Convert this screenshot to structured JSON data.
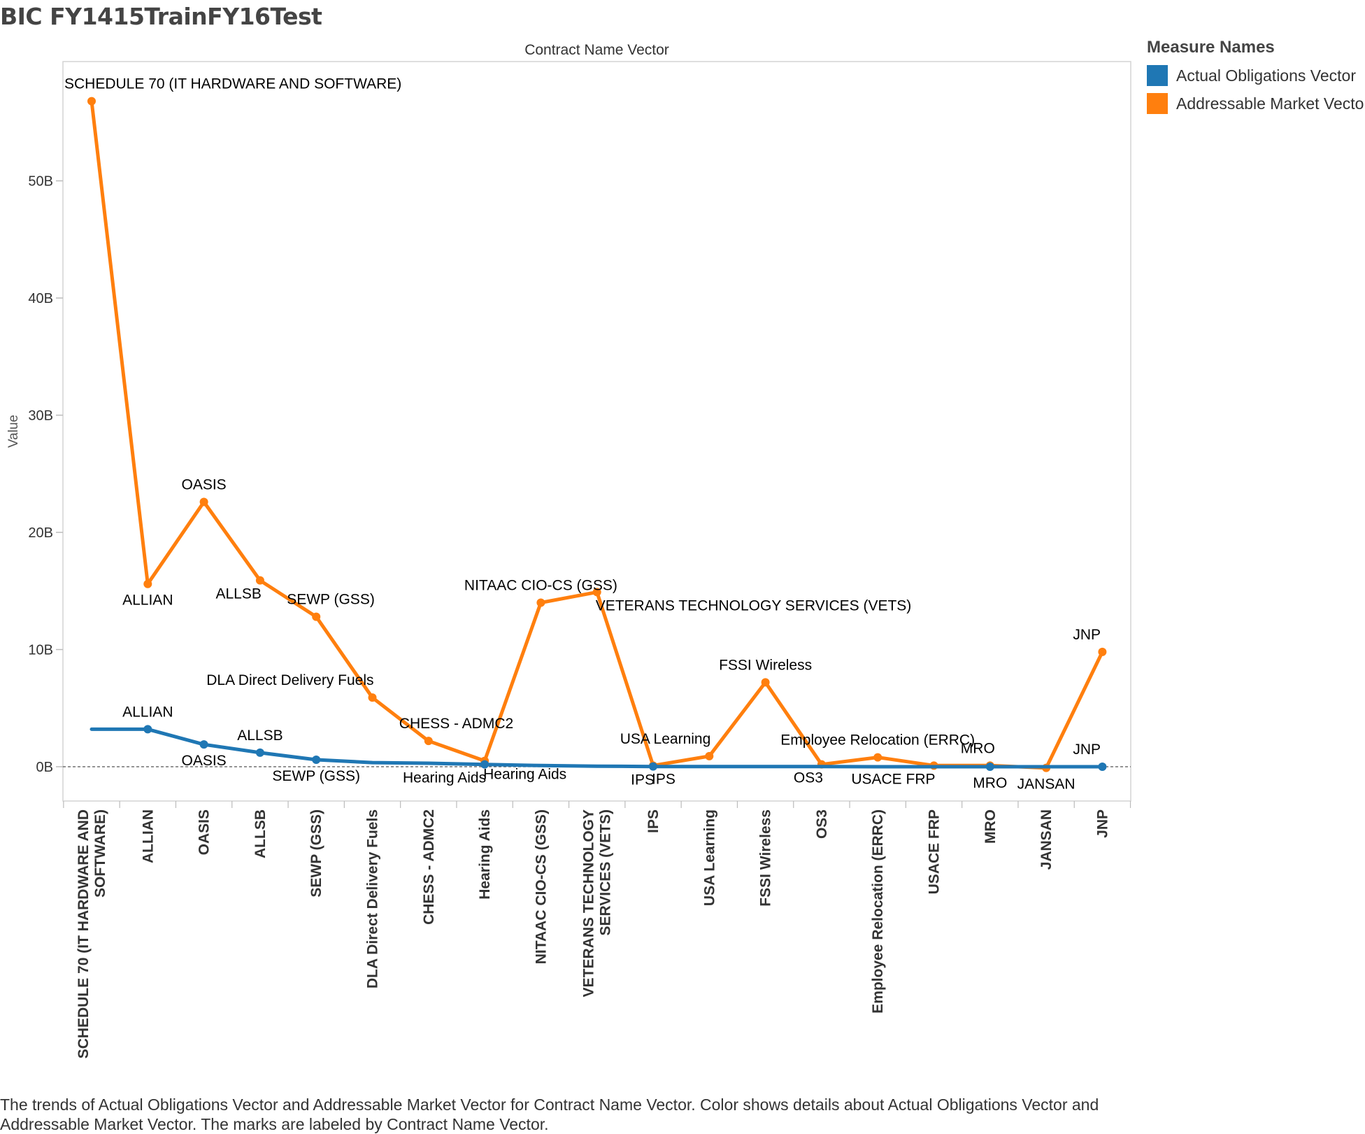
{
  "title": "BIC FY1415TrainFY16Test",
  "chart_data": {
    "type": "line",
    "x_axis_title": "Contract Name Vector",
    "y_axis_title": "Value",
    "y_ticks": [
      {
        "value": 0,
        "label": "0B"
      },
      {
        "value": 10,
        "label": "10B"
      },
      {
        "value": 20,
        "label": "20B"
      },
      {
        "value": 30,
        "label": "30B"
      },
      {
        "value": 40,
        "label": "40B"
      },
      {
        "value": 50,
        "label": "50B"
      }
    ],
    "y_unit": "billions",
    "ylim": [
      -3,
      61
    ],
    "categories": [
      {
        "lines": [
          "SCHEDULE 70 (IT HARDWARE AND",
          "SOFTWARE)"
        ]
      },
      {
        "lines": [
          "ALLIAN"
        ]
      },
      {
        "lines": [
          "OASIS"
        ]
      },
      {
        "lines": [
          "ALLSB"
        ]
      },
      {
        "lines": [
          "SEWP (GSS)"
        ]
      },
      {
        "lines": [
          "DLA Direct Delivery Fuels"
        ]
      },
      {
        "lines": [
          "CHESS - ADMC2"
        ]
      },
      {
        "lines": [
          "Hearing Aids"
        ]
      },
      {
        "lines": [
          "NITAAC CIO-CS (GSS)"
        ]
      },
      {
        "lines": [
          "VETERANS TECHNOLOGY",
          "SERVICES (VETS)"
        ]
      },
      {
        "lines": [
          "IPS"
        ]
      },
      {
        "lines": [
          "USA Learning"
        ]
      },
      {
        "lines": [
          "FSSI Wireless"
        ]
      },
      {
        "lines": [
          "OS3"
        ]
      },
      {
        "lines": [
          "Employee Relocation (ERRC)"
        ]
      },
      {
        "lines": [
          "USACE FRP"
        ]
      },
      {
        "lines": [
          "MRO"
        ]
      },
      {
        "lines": [
          "JANSAN"
        ]
      },
      {
        "lines": [
          "JNP"
        ]
      }
    ],
    "series": [
      {
        "name": "Actual Obligations Vector",
        "color": "#1F77B4",
        "values": [
          3.2,
          3.2,
          1.9,
          1.2,
          0.6,
          0.35,
          0.3,
          0.2,
          0.1,
          0.05,
          0.02,
          0.02,
          0.01,
          0.01,
          0.0,
          0.0,
          0.0,
          0.0,
          0.0
        ],
        "marker_indices": [
          1,
          2,
          3,
          4,
          7,
          10,
          16,
          18
        ],
        "labels": [
          {
            "i": 1,
            "text": "ALLIAN",
            "pos": "above"
          },
          {
            "i": 2,
            "text": "OASIS",
            "pos": "below"
          },
          {
            "i": 3,
            "text": "ALLSB",
            "pos": "above"
          },
          {
            "i": 4,
            "text": "SEWP (GSS)",
            "pos": "below"
          },
          {
            "i": 7,
            "text": "Hearing Aids",
            "pos": "below-left"
          },
          {
            "i": 10,
            "text": "IPS",
            "pos": "below-left"
          },
          {
            "i": 16,
            "text": "MRO",
            "pos": "below"
          },
          {
            "i": 18,
            "text": "JNP",
            "pos": "above-right"
          }
        ]
      },
      {
        "name": "Addressable Market Vector",
        "color": "#FF7F0E",
        "values": [
          56.8,
          15.6,
          22.6,
          15.9,
          12.8,
          5.9,
          2.2,
          0.5,
          14.0,
          14.9,
          0.1,
          0.9,
          7.2,
          0.2,
          0.8,
          0.1,
          0.1,
          -0.1,
          9.8
        ],
        "labels": [
          {
            "i": 0,
            "text": "SCHEDULE 70 (IT HARDWARE AND SOFTWARE)",
            "pos": "above-right"
          },
          {
            "i": 1,
            "text": "ALLIAN",
            "pos": "below"
          },
          {
            "i": 2,
            "text": "OASIS",
            "pos": "above"
          },
          {
            "i": 3,
            "text": "ALLSB",
            "pos": "below-left"
          },
          {
            "i": 4,
            "text": "SEWP (GSS)",
            "pos": "above-right"
          },
          {
            "i": 5,
            "text": "DLA Direct Delivery Fuels",
            "pos": "above-left"
          },
          {
            "i": 6,
            "text": "CHESS - ADMC2",
            "pos": "above-right"
          },
          {
            "i": 7,
            "text": "Hearing Aids",
            "pos": "below-right"
          },
          {
            "i": 8,
            "text": "NITAAC CIO-CS (GSS)",
            "pos": "above"
          },
          {
            "i": 9,
            "text": "VETERANS TECHNOLOGY SERVICES (VETS)",
            "pos": "below-right"
          },
          {
            "i": 10,
            "text": "IPS",
            "pos": "below-right"
          },
          {
            "i": 11,
            "text": "USA Learning",
            "pos": "above-left"
          },
          {
            "i": 12,
            "text": "FSSI Wireless",
            "pos": "above"
          },
          {
            "i": 13,
            "text": "OS3",
            "pos": "below-left"
          },
          {
            "i": 14,
            "text": "Employee Relocation (ERRC)",
            "pos": "above"
          },
          {
            "i": 15,
            "text": "USACE FRP",
            "pos": "below-left"
          },
          {
            "i": 16,
            "text": "MRO",
            "pos": "above-right"
          },
          {
            "i": 17,
            "text": "JANSAN",
            "pos": "below"
          },
          {
            "i": 18,
            "text": "JNP",
            "pos": "above-right"
          }
        ]
      }
    ],
    "zero_line": "dashed",
    "grid": false,
    "legend_position": "right"
  },
  "legend": {
    "title": "Measure Names",
    "items": [
      {
        "label": "Actual Obligations Vector",
        "color": "#1F77B4"
      },
      {
        "label": "Addressable Market Vector",
        "color": "#FF7F0E"
      }
    ]
  },
  "caption": "The trends of Actual Obligations Vector and Addressable Market Vector for Contract Name Vector.  Color shows details about Actual Obligations Vector and Addressable Market Vector.  The marks are labeled by Contract Name Vector."
}
